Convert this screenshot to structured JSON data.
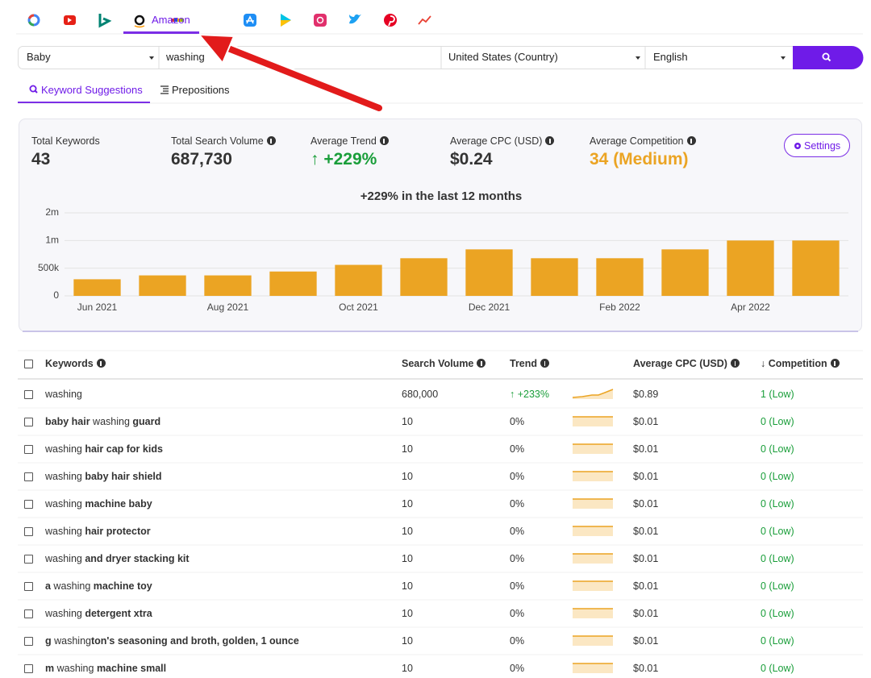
{
  "tabs": {
    "amazon": "Amazon"
  },
  "search": {
    "category": "Baby",
    "query": "washing",
    "country": "United States (Country)",
    "language": "English"
  },
  "subtabs": [
    "Keyword Suggestions",
    "Prepositions"
  ],
  "stats": [
    {
      "label": "Total Keywords",
      "value": "43"
    },
    {
      "label": "Total Search Volume",
      "value": "687,730"
    },
    {
      "label": "Average Trend",
      "value": "↑ +229%"
    },
    {
      "label": "Average CPC (USD)",
      "value": "$0.24"
    },
    {
      "label": "Average Competition",
      "value": "34 (Medium)"
    }
  ],
  "settings": "Settings",
  "chart_data": {
    "type": "bar",
    "title": "+229% in the last 12 months",
    "categories": [
      "Jun 2021",
      null,
      "Aug 2021",
      null,
      "Oct 2021",
      null,
      "Dec 2021",
      null,
      "Feb 2022",
      null,
      "Apr 2022",
      null
    ],
    "values": [
      300000,
      370000,
      370000,
      440000,
      560000,
      680000,
      840000,
      680000,
      680000,
      840000,
      1000000,
      1000000
    ],
    "color": "#eba423",
    "ylim": [
      0,
      2000000
    ],
    "yscale": "tick-spaced",
    "yticks": [
      0,
      {
        "value": 500000,
        "label": "500k"
      },
      {
        "value": 1000000,
        "label": "1m"
      },
      {
        "value": 2000000,
        "label": "2m"
      }
    ],
    "grid": true
  },
  "table": {
    "header": [
      "Keywords",
      "Search Volume",
      "Trend",
      "Average CPC (USD)",
      "↓ Competition"
    ],
    "rows": [
      {
        "keyword": [
          {
            "text": "washing",
            "bold": false
          }
        ],
        "volume": "680,000",
        "trend": "↑ +233%",
        "cpc": "$0.89",
        "competition": "1 (Low)"
      },
      {
        "keyword": [
          {
            "text": "baby hair",
            "bold": true
          },
          {
            "text": " washing ",
            "bold": false
          },
          {
            "text": "guard",
            "bold": true
          }
        ],
        "volume": "10",
        "trend": "0%",
        "cpc": "$0.01",
        "competition": "0 (Low)"
      },
      {
        "keyword": [
          {
            "text": "washing ",
            "bold": false
          },
          {
            "text": "hair cap for kids",
            "bold": true
          }
        ],
        "volume": "10",
        "trend": "0%",
        "cpc": "$0.01",
        "competition": "0 (Low)"
      },
      {
        "keyword": [
          {
            "text": "washing ",
            "bold": false
          },
          {
            "text": "baby hair shield",
            "bold": true
          }
        ],
        "volume": "10",
        "trend": "0%",
        "cpc": "$0.01",
        "competition": "0 (Low)"
      },
      {
        "keyword": [
          {
            "text": "washing ",
            "bold": false
          },
          {
            "text": "machine baby",
            "bold": true
          }
        ],
        "volume": "10",
        "trend": "0%",
        "cpc": "$0.01",
        "competition": "0 (Low)"
      },
      {
        "keyword": [
          {
            "text": "washing ",
            "bold": false
          },
          {
            "text": "hair protector",
            "bold": true
          }
        ],
        "volume": "10",
        "trend": "0%",
        "cpc": "$0.01",
        "competition": "0 (Low)"
      },
      {
        "keyword": [
          {
            "text": "washing ",
            "bold": false
          },
          {
            "text": "and dryer stacking kit",
            "bold": true
          }
        ],
        "volume": "10",
        "trend": "0%",
        "cpc": "$0.01",
        "competition": "0 (Low)"
      },
      {
        "keyword": [
          {
            "text": "a",
            "bold": true
          },
          {
            "text": " washing ",
            "bold": false
          },
          {
            "text": "machine toy",
            "bold": true
          }
        ],
        "volume": "10",
        "trend": "0%",
        "cpc": "$0.01",
        "competition": "0 (Low)"
      },
      {
        "keyword": [
          {
            "text": "washing ",
            "bold": false
          },
          {
            "text": "detergent xtra",
            "bold": true
          }
        ],
        "volume": "10",
        "trend": "0%",
        "cpc": "$0.01",
        "competition": "0 (Low)"
      },
      {
        "keyword": [
          {
            "text": "g",
            "bold": true
          },
          {
            "text": " washing",
            "bold": false
          },
          {
            "text": "ton's seasoning and broth, golden, 1 ounce",
            "bold": true
          }
        ],
        "volume": "10",
        "trend": "0%",
        "cpc": "$0.01",
        "competition": "0 (Low)"
      },
      {
        "keyword": [
          {
            "text": "m",
            "bold": true
          },
          {
            "text": " washing ",
            "bold": false
          },
          {
            "text": "machine small",
            "bold": true
          }
        ],
        "volume": "10",
        "trend": "0%",
        "cpc": "$0.01",
        "competition": "0 (Low)"
      }
    ]
  }
}
